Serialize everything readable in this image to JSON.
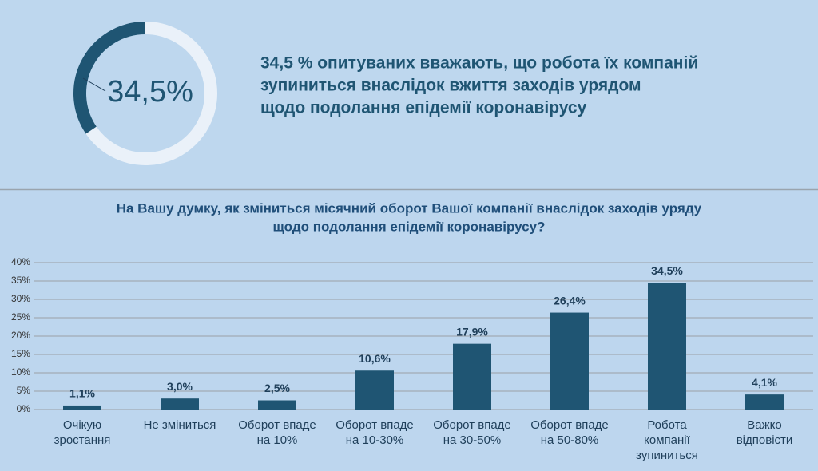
{
  "chart_data": [
    {
      "type": "donut",
      "values": [
        34.5,
        65.5
      ],
      "colors": [
        "#1f5573",
        "#eaf1f9"
      ],
      "center_label": "34,5%",
      "text": [
        "34,5 % опитуваних вважають, що робота їх компаній",
        "зупиниться внаслідок вжиття заходів урядом",
        "щодо подолання епідемії коронавірусу"
      ]
    },
    {
      "type": "bar",
      "title": [
        "На Вашу думку, як зміниться місячний оборот Вашої компанії внаслідок заходів уряду",
        "щодо подолання епідемії коронавірусу?"
      ],
      "categories": [
        "Очікую\nзростання",
        "Не зміниться",
        "Оборот впаде\nна 10%",
        "Оборот впаде\nна 10-30%",
        "Оборот впаде\nна 30-50%",
        "Оборот впаде\nна 50-80%",
        "Робота\nкомпанії\nзупиниться",
        "Важко\nвідповісти"
      ],
      "values": [
        1.1,
        3.0,
        2.5,
        10.6,
        17.9,
        26.4,
        34.5,
        4.1
      ],
      "value_labels": [
        "1,1%",
        "3,0%",
        "2,5%",
        "10,6%",
        "17,9%",
        "26,4%",
        "34,5%",
        "4,1%"
      ],
      "color": "#1f5573",
      "ylim": [
        0,
        40
      ],
      "yticks": [
        {
          "value": 0,
          "label": "0%"
        },
        {
          "value": 5,
          "label": "5%"
        },
        {
          "value": 10,
          "label": "10%"
        },
        {
          "value": 15,
          "label": "15%"
        },
        {
          "value": 20,
          "label": "20%"
        },
        {
          "value": 25,
          "label": "25%"
        },
        {
          "value": 30,
          "label": "30%"
        },
        {
          "value": 35,
          "label": "35%"
        },
        {
          "value": 40,
          "label": "40%"
        }
      ],
      "grid": true
    }
  ]
}
